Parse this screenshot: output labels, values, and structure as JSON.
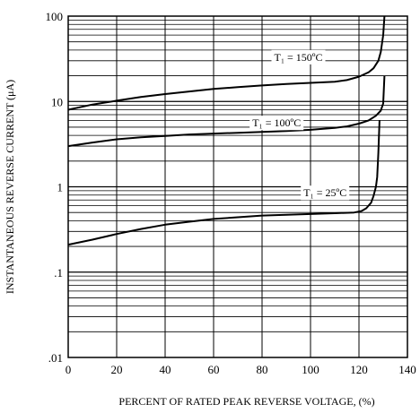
{
  "chart_data": {
    "type": "line",
    "title": "",
    "xlabel": "PERCENT OF RATED PEAK REVERSE VOLTAGE, (%)",
    "ylabel": "INSTANTANEOUS REVERSE CURRENT (μA)",
    "xlim": [
      0,
      140
    ],
    "ylim": [
      0.01,
      100
    ],
    "yscale": "log",
    "grid": true,
    "x_ticks": [
      {
        "value": 0,
        "label": "0"
      },
      {
        "value": 20,
        "label": "20"
      },
      {
        "value": 40,
        "label": "40"
      },
      {
        "value": 60,
        "label": "60"
      },
      {
        "value": 80,
        "label": "80"
      },
      {
        "value": 100,
        "label": "100"
      },
      {
        "value": 120,
        "label": "120"
      },
      {
        "value": 140,
        "label": "140"
      }
    ],
    "y_ticks": [
      {
        "value": 0.01,
        "label": ".01"
      },
      {
        "value": 0.1,
        "label": ".1"
      },
      {
        "value": 1,
        "label": "1"
      },
      {
        "value": 10,
        "label": "10"
      },
      {
        "value": 100,
        "label": "100"
      }
    ],
    "series": [
      {
        "name": "T₁ = 150ºC",
        "label_x": 95,
        "label_y": 33,
        "x": [
          0,
          10,
          20,
          30,
          40,
          50,
          60,
          70,
          80,
          90,
          100,
          110,
          115,
          120,
          124,
          126,
          128,
          129,
          130,
          130.5
        ],
        "y": [
          8.0,
          9.2,
          10.2,
          11.3,
          12.2,
          13.1,
          14.0,
          14.7,
          15.4,
          16.0,
          16.5,
          17.0,
          17.8,
          19.5,
          22.0,
          24.5,
          30.0,
          38.0,
          60.0,
          100.0
        ]
      },
      {
        "name": "T₁ = 100ºC",
        "label_x": 86,
        "label_y": 5.6,
        "x": [
          0,
          10,
          20,
          30,
          40,
          50,
          60,
          70,
          80,
          90,
          100,
          110,
          115,
          120,
          124,
          127,
          129,
          130,
          130.5
        ],
        "y": [
          3.0,
          3.3,
          3.6,
          3.8,
          3.95,
          4.1,
          4.2,
          4.3,
          4.4,
          4.5,
          4.65,
          4.9,
          5.1,
          5.5,
          6.0,
          6.8,
          7.8,
          9.5,
          20.0
        ]
      },
      {
        "name": "T₁ = 25ºC",
        "label_x": 106,
        "label_y": 0.85,
        "x": [
          0,
          10,
          20,
          30,
          40,
          50,
          60,
          70,
          80,
          90,
          100,
          110,
          118,
          121,
          123,
          125,
          126,
          127,
          127.5,
          128,
          128.5
        ],
        "y": [
          0.21,
          0.24,
          0.28,
          0.32,
          0.36,
          0.39,
          0.42,
          0.44,
          0.46,
          0.47,
          0.48,
          0.49,
          0.5,
          0.52,
          0.56,
          0.65,
          0.78,
          1.0,
          1.3,
          2.5,
          6.0
        ]
      }
    ]
  }
}
